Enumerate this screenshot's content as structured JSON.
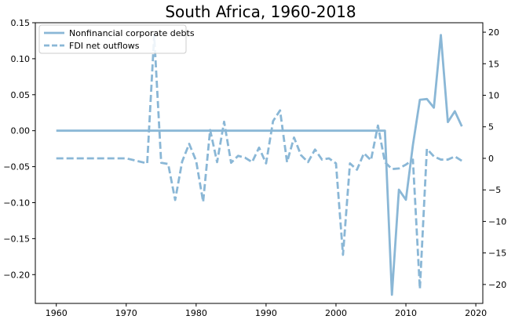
{
  "chart_data": {
    "type": "line",
    "title": "South Africa, 1960-2018",
    "xlabel": "",
    "ylabel": "",
    "xlim": [
      1957,
      2021
    ],
    "ylim_left": [
      -0.24,
      0.15
    ],
    "ylim_right": [
      -23,
      21.5
    ],
    "x_ticks": [
      1960,
      1970,
      1980,
      1990,
      2000,
      2010,
      2020
    ],
    "y_left_ticks": [
      -0.2,
      -0.15,
      -0.1,
      -0.05,
      0.0,
      0.05,
      0.1,
      0.15
    ],
    "y_left_tick_labels": [
      "−0.20",
      "−0.15",
      "−0.10",
      "−0.05",
      "0.00",
      "0.05",
      "0.10",
      "0.15"
    ],
    "y_right_ticks": [
      -20,
      -15,
      -10,
      -5,
      0,
      5,
      10,
      15,
      20
    ],
    "y_right_tick_labels": [
      "−20",
      "−15",
      "−10",
      "−5",
      "0",
      "5",
      "10",
      "15",
      "20"
    ],
    "grid": false,
    "legend_placement": "top-left",
    "color": "#8ab7d6",
    "series": [
      {
        "name": "Nonfinancial corporate debts",
        "axis": "left",
        "style": "solid",
        "points": [
          [
            1960,
            0
          ],
          [
            2007,
            0
          ],
          [
            2008,
            -0.228
          ],
          [
            2009,
            -0.082
          ],
          [
            2010,
            -0.096
          ],
          [
            2011,
            -0.02
          ],
          [
            2012,
            0.043
          ],
          [
            2013,
            0.044
          ],
          [
            2014,
            0.032
          ],
          [
            2015,
            0.133
          ],
          [
            2016,
            0.012
          ],
          [
            2017,
            0.027
          ],
          [
            2018,
            0.006
          ]
        ]
      },
      {
        "name": "FDI net outflows",
        "axis": "right",
        "style": "dashed",
        "points": [
          [
            1960,
            0
          ],
          [
            1970,
            0
          ],
          [
            1973,
            -0.8
          ],
          [
            1974,
            19.5
          ],
          [
            1975,
            -0.7
          ],
          [
            1976,
            -0.9
          ],
          [
            1977,
            -6.6
          ],
          [
            1978,
            -0.5
          ],
          [
            1979,
            2.3
          ],
          [
            1980,
            -0.4
          ],
          [
            1981,
            -6.9
          ],
          [
            1982,
            4.5
          ],
          [
            1983,
            -0.6
          ],
          [
            1984,
            5.8
          ],
          [
            1985,
            -0.7
          ],
          [
            1986,
            0.4
          ],
          [
            1987,
            0.1
          ],
          [
            1988,
            -0.6
          ],
          [
            1989,
            1.7
          ],
          [
            1990,
            -0.8
          ],
          [
            1991,
            5.9
          ],
          [
            1992,
            7.6
          ],
          [
            1993,
            -0.6
          ],
          [
            1994,
            3.3
          ],
          [
            1995,
            0.5
          ],
          [
            1996,
            -0.6
          ],
          [
            1997,
            1.4
          ],
          [
            1998,
            -0.2
          ],
          [
            1999,
            0
          ],
          [
            2000,
            -0.8
          ],
          [
            2001,
            -15.3
          ],
          [
            2002,
            -0.8
          ],
          [
            2003,
            -1.8
          ],
          [
            2004,
            0.8
          ],
          [
            2005,
            -0.3
          ],
          [
            2006,
            5.2
          ],
          [
            2007,
            -0.6
          ],
          [
            2008,
            -1.7
          ],
          [
            2009,
            -1.6
          ],
          [
            2010,
            -1.0
          ],
          [
            2011,
            -0.2
          ],
          [
            2012,
            -20.7
          ],
          [
            2013,
            1.5
          ],
          [
            2014,
            0.3
          ],
          [
            2015,
            -0.2
          ],
          [
            2016,
            -0.2
          ],
          [
            2017,
            0.3
          ],
          [
            2018,
            -0.4
          ]
        ]
      }
    ]
  }
}
